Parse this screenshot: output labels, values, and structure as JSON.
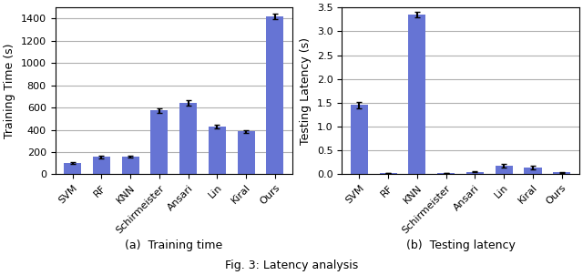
{
  "title": "Fig. 3: Latency analysis",
  "chart_data": [
    {
      "type": "bar",
      "categories": [
        "SVM",
        "RF",
        "KNN",
        "Schirmeister",
        "Ansari",
        "Lin",
        "Kiral",
        "Ours"
      ],
      "values": [
        100,
        155,
        155,
        575,
        645,
        430,
        385,
        1420
      ],
      "errors": [
        8,
        10,
        8,
        20,
        25,
        18,
        15,
        25
      ],
      "color": "#6674d4",
      "xlabel": "(a)  Training time",
      "ylabel": "Training Time (s)",
      "ylim": [
        0,
        1500
      ],
      "yticks": [
        0,
        200,
        400,
        600,
        800,
        1000,
        1200,
        1400
      ],
      "grid": true
    },
    {
      "type": "bar",
      "categories": [
        "SVM",
        "RF",
        "KNN",
        "Schirmeister",
        "Ansari",
        "Lin",
        "Kiral",
        "Ours"
      ],
      "values": [
        1.45,
        0.03,
        3.35,
        0.02,
        0.05,
        0.18,
        0.14,
        0.04
      ],
      "errors": [
        0.07,
        0.005,
        0.05,
        0.003,
        0.01,
        0.04,
        0.03,
        0.005
      ],
      "color": "#6674d4",
      "xlabel": "(b)  Testing latency",
      "ylabel": "Testing Latency (s)",
      "ylim": [
        0,
        3.5
      ],
      "yticks": [
        0.0,
        0.5,
        1.0,
        1.5,
        2.0,
        2.5,
        3.0,
        3.5
      ],
      "grid": true
    }
  ]
}
